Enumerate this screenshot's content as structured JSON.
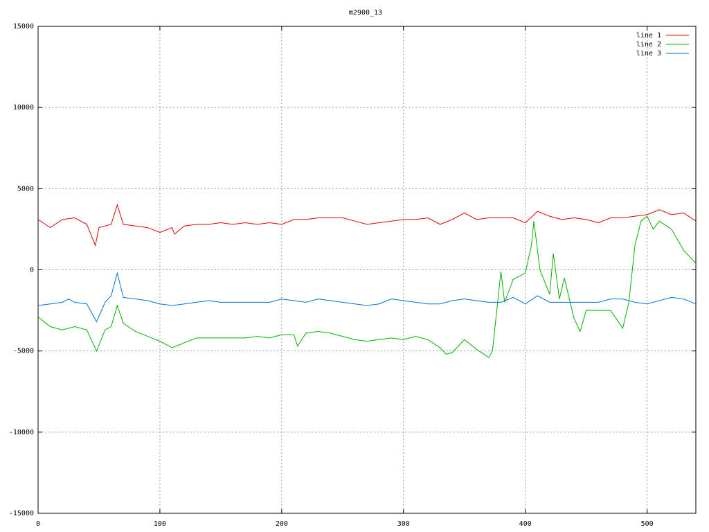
{
  "chart_data": {
    "type": "line",
    "title": "m2900_13",
    "xlim": [
      0,
      540
    ],
    "xticks": [
      0,
      100,
      200,
      300,
      400,
      500
    ],
    "ylim": [
      -15000,
      15000
    ],
    "yticks": [
      -15000,
      -10000,
      -5000,
      0,
      5000,
      10000,
      15000
    ],
    "grid": true,
    "legend": "top-right",
    "series": [
      {
        "name": "line 1",
        "color": "#e00000",
        "x": [
          0,
          10,
          20,
          30,
          40,
          47,
          50,
          60,
          65,
          70,
          80,
          90,
          100,
          110,
          112,
          120,
          130,
          140,
          150,
          160,
          170,
          180,
          190,
          200,
          210,
          220,
          230,
          240,
          250,
          260,
          270,
          280,
          290,
          300,
          310,
          320,
          330,
          340,
          350,
          360,
          370,
          380,
          390,
          400,
          410,
          420,
          430,
          440,
          450,
          460,
          470,
          480,
          490,
          500,
          510,
          520,
          530,
          540
        ],
        "values": [
          3100,
          2600,
          3100,
          3200,
          2800,
          1500,
          2600,
          2800,
          4000,
          2800,
          2700,
          2600,
          2300,
          2600,
          2200,
          2700,
          2800,
          2800,
          2900,
          2800,
          2900,
          2800,
          2900,
          2800,
          3100,
          3100,
          3200,
          3200,
          3200,
          3000,
          2800,
          2900,
          3000,
          3100,
          3100,
          3200,
          2800,
          3100,
          3500,
          3100,
          3200,
          3200,
          3200,
          2900,
          3600,
          3300,
          3100,
          3200,
          3100,
          2900,
          3200,
          3200,
          3300,
          3400,
          3700,
          3400,
          3500,
          3000
        ]
      },
      {
        "name": "line 2",
        "color": "#00b000",
        "x": [
          0,
          10,
          20,
          30,
          40,
          48,
          55,
          60,
          65,
          70,
          80,
          90,
          100,
          110,
          120,
          130,
          140,
          150,
          160,
          170,
          180,
          190,
          200,
          210,
          213,
          220,
          230,
          240,
          250,
          260,
          270,
          280,
          290,
          300,
          310,
          320,
          330,
          335,
          340,
          350,
          360,
          370,
          373,
          378,
          380,
          383,
          390,
          400,
          405,
          407,
          412,
          420,
          423,
          428,
          432,
          440,
          445,
          450,
          460,
          470,
          480,
          485,
          490,
          495,
          500,
          505,
          510,
          520,
          530,
          540
        ],
        "values": [
          -2900,
          -3500,
          -3700,
          -3500,
          -3700,
          -5000,
          -3700,
          -3500,
          -2200,
          -3300,
          -3800,
          -4100,
          -4400,
          -4800,
          -4500,
          -4200,
          -4200,
          -4200,
          -4200,
          -4200,
          -4100,
          -4200,
          -4000,
          -4000,
          -4700,
          -3900,
          -3800,
          -3900,
          -4100,
          -4300,
          -4400,
          -4300,
          -4200,
          -4300,
          -4100,
          -4300,
          -4800,
          -5200,
          -5100,
          -4300,
          -4900,
          -5400,
          -5000,
          -1500,
          -100,
          -2000,
          -600,
          -200,
          1500,
          3000,
          0,
          -1500,
          1000,
          -1800,
          -500,
          -3000,
          -3800,
          -2500,
          -2500,
          -2500,
          -3600,
          -2000,
          1500,
          3000,
          3300,
          2500,
          3000,
          2500,
          1200,
          400
        ]
      },
      {
        "name": "line 3",
        "color": "#0070d0",
        "x": [
          0,
          10,
          20,
          25,
          30,
          40,
          48,
          55,
          60,
          65,
          70,
          80,
          90,
          100,
          110,
          120,
          130,
          140,
          150,
          160,
          170,
          180,
          190,
          200,
          210,
          220,
          230,
          240,
          250,
          260,
          270,
          280,
          290,
          300,
          310,
          320,
          330,
          340,
          350,
          360,
          370,
          380,
          390,
          400,
          410,
          420,
          430,
          440,
          450,
          460,
          470,
          480,
          490,
          500,
          510,
          520,
          530,
          540
        ],
        "values": [
          -2200,
          -2100,
          -2000,
          -1800,
          -2000,
          -2100,
          -3200,
          -2000,
          -1600,
          -200,
          -1700,
          -1800,
          -1900,
          -2100,
          -2200,
          -2100,
          -2000,
          -1900,
          -2000,
          -2000,
          -2000,
          -2000,
          -2000,
          -1800,
          -1900,
          -2000,
          -1800,
          -1900,
          -2000,
          -2100,
          -2200,
          -2100,
          -1800,
          -1900,
          -2000,
          -2100,
          -2100,
          -1900,
          -1800,
          -1900,
          -2000,
          -2000,
          -1700,
          -2100,
          -1600,
          -2000,
          -2000,
          -2000,
          -2000,
          -2000,
          -1800,
          -1800,
          -2000,
          -2100,
          -1900,
          -1700,
          -1800,
          -2100
        ]
      }
    ]
  }
}
